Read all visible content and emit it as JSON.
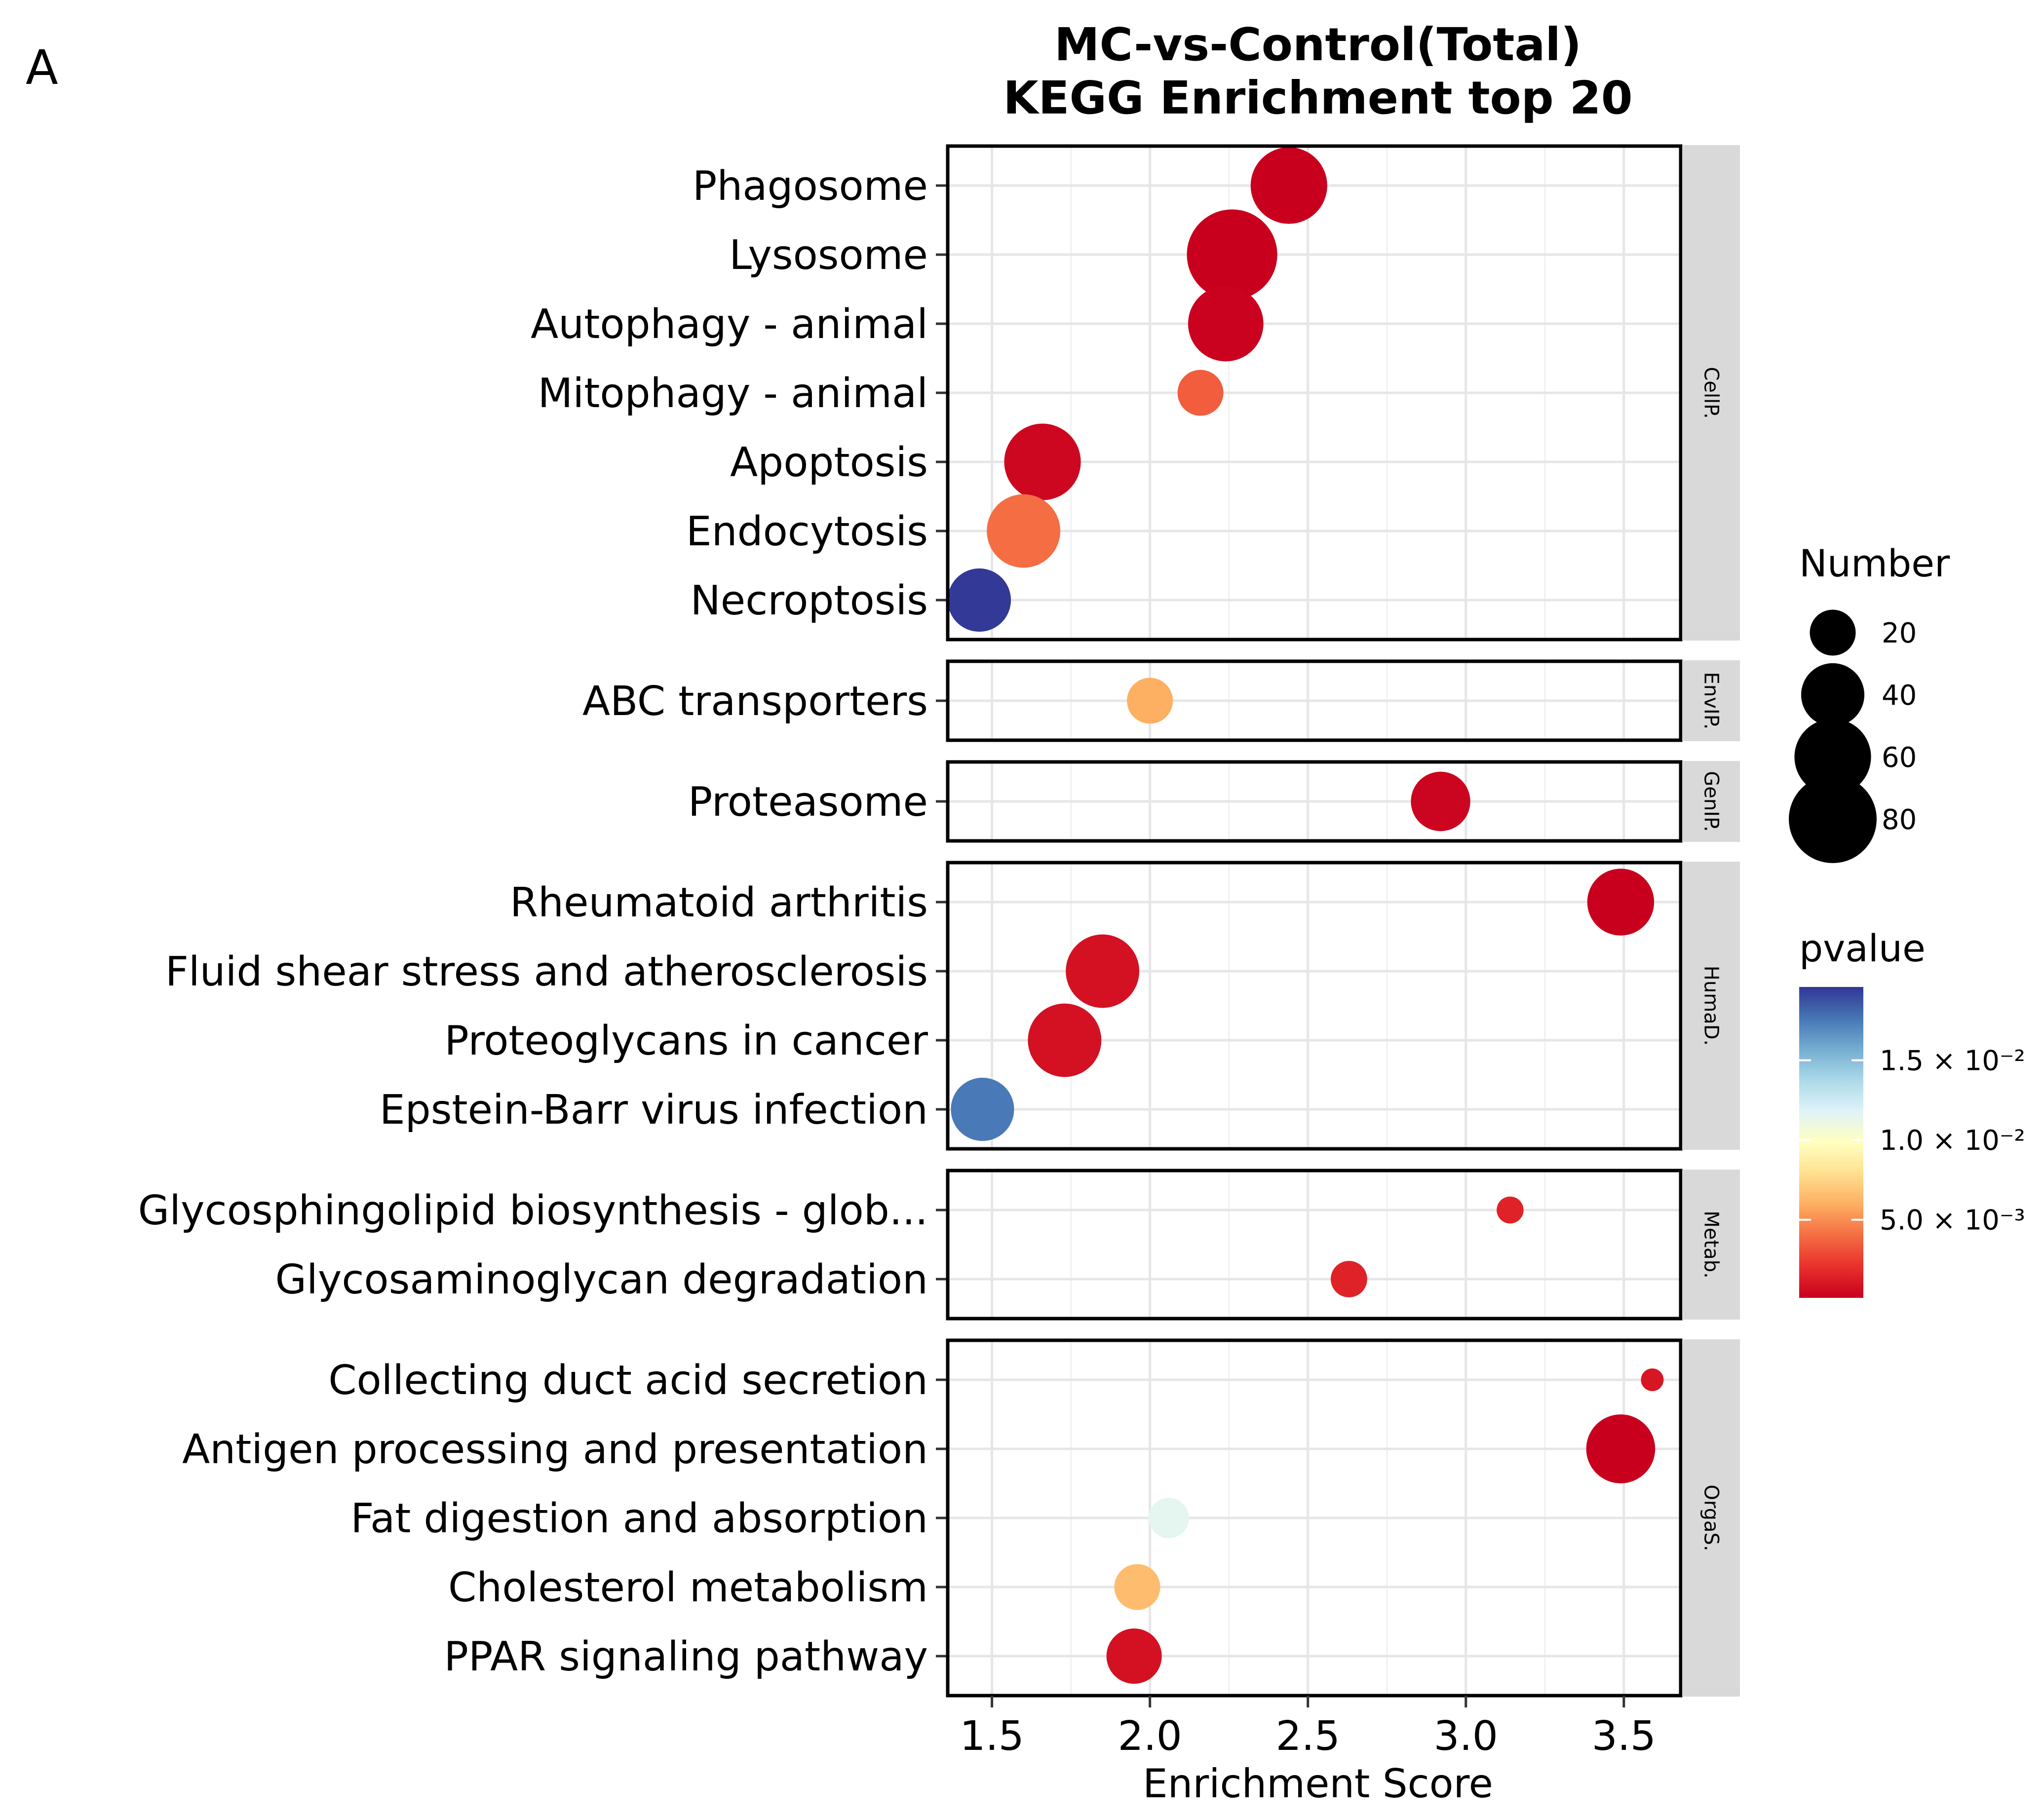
{
  "panel_label": "A",
  "chart_data": {
    "type": "scatter",
    "title": "MC-vs-Control(Total)",
    "subtitle": "KEGG Enrichment top 20",
    "xlabel": "Enrichment Score",
    "ylabel": "",
    "xlim": [
      1.36,
      3.68
    ],
    "x_ticks": [
      {
        "value": 1.5,
        "label": "1.5"
      },
      {
        "value": 2.0,
        "label": "2.0"
      },
      {
        "value": 2.5,
        "label": "2.5"
      },
      {
        "value": 3.0,
        "label": "3.0"
      },
      {
        "value": 3.5,
        "label": "3.5"
      }
    ],
    "grid": true,
    "panels": [
      {
        "strip": "CellP.",
        "rows": [
          {
            "term": "Phagosome",
            "x": 2.44,
            "number": 60,
            "pvalue": 0.0001
          },
          {
            "term": "Lysosome",
            "x": 2.26,
            "number": 85,
            "pvalue": 0.0001
          },
          {
            "term": "Autophagy - animal",
            "x": 2.24,
            "number": 58,
            "pvalue": 0.0002
          },
          {
            "term": "Mitophagy - animal",
            "x": 2.16,
            "number": 20,
            "pvalue": 0.0035
          },
          {
            "term": "Apoptosis",
            "x": 1.66,
            "number": 60,
            "pvalue": 0.0004
          },
          {
            "term": "Endocytosis",
            "x": 1.6,
            "number": 55,
            "pvalue": 0.004
          },
          {
            "term": "Necroptosis",
            "x": 1.46,
            "number": 40,
            "pvalue": 0.0195
          }
        ]
      },
      {
        "strip": "EnvIP.",
        "rows": [
          {
            "term": "ABC transporters",
            "x": 2.0,
            "number": 20,
            "pvalue": 0.006
          }
        ]
      },
      {
        "strip": "GenIP.",
        "rows": [
          {
            "term": "Proteasome",
            "x": 2.92,
            "number": 35,
            "pvalue": 0.0003
          }
        ]
      },
      {
        "strip": "HumaD.",
        "rows": [
          {
            "term": "Rheumatoid arthritis",
            "x": 3.49,
            "number": 45,
            "pvalue": 0.0001
          },
          {
            "term": "Fluid shear stress and atherosclerosis",
            "x": 1.85,
            "number": 55,
            "pvalue": 0.0008
          },
          {
            "term": "Proteoglycans in cancer",
            "x": 1.73,
            "number": 55,
            "pvalue": 0.0008
          },
          {
            "term": "Epstein-Barr virus infection",
            "x": 1.47,
            "number": 40,
            "pvalue": 0.0175
          }
        ]
      },
      {
        "strip": "Metab.",
        "rows": [
          {
            "term": "Glycosphingolipid biosynthesis - glob...",
            "x": 3.14,
            "number": 6,
            "pvalue": 0.0015
          },
          {
            "term": "Glycosaminoglycan degradation",
            "x": 2.63,
            "number": 12,
            "pvalue": 0.0015
          }
        ]
      },
      {
        "strip": "OrgaS.",
        "rows": [
          {
            "term": "Collecting duct acid secretion",
            "x": 3.59,
            "number": 4,
            "pvalue": 0.001
          },
          {
            "term": "Antigen processing and presentation",
            "x": 3.49,
            "number": 48,
            "pvalue": 0.0001
          },
          {
            "term": "Fat digestion and absorption",
            "x": 2.06,
            "number": 15,
            "pvalue": 0.0115
          },
          {
            "term": "Cholesterol metabolism",
            "x": 1.96,
            "number": 20,
            "pvalue": 0.0065
          },
          {
            "term": "PPAR signaling pathway",
            "x": 1.95,
            "number": 30,
            "pvalue": 0.0008
          }
        ]
      }
    ],
    "size_legend": {
      "title": "Number",
      "entries": [
        {
          "value": 20,
          "label": "20"
        },
        {
          "value": 40,
          "label": "40"
        },
        {
          "value": 60,
          "label": "60"
        },
        {
          "value": 80,
          "label": "80"
        }
      ]
    },
    "color_legend": {
      "title": "pvalue",
      "range": [
        0.0001,
        0.0196
      ],
      "ticks": [
        {
          "value": 0.005,
          "label": "5.0 × 10⁻³"
        },
        {
          "value": 0.01,
          "label": "1.0 × 10⁻²"
        },
        {
          "value": 0.015,
          "label": "1.5 × 10⁻²"
        }
      ],
      "colors_low_to_high": [
        "#c8001e",
        "#e8302c",
        "#f46d43",
        "#fdae61",
        "#fee090",
        "#ffffbf",
        "#e0f3f8",
        "#abd9e9",
        "#74add1",
        "#4575b4",
        "#313695"
      ]
    }
  }
}
